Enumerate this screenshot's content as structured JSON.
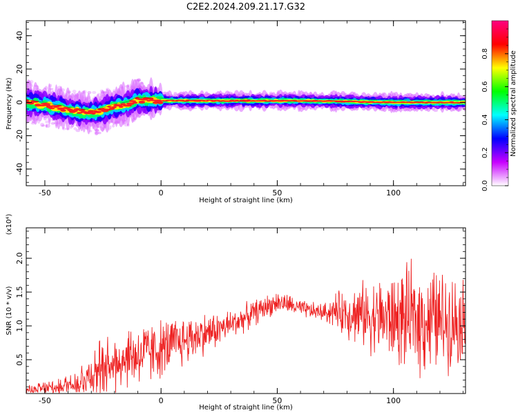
{
  "title": "C2E2.2024.209.21.17.G32",
  "chart_data": [
    {
      "type": "heatmap",
      "name": "spectrogram",
      "xlabel": "Height of straight line (km)",
      "ylabel": "Frequency (Hz)",
      "xlim": [
        -58,
        131
      ],
      "ylim": [
        -50,
        49
      ],
      "xticks": [
        -50,
        0,
        50,
        100
      ],
      "yticks": [
        -40,
        -20,
        0,
        20,
        40
      ],
      "ridge": [
        {
          "x": -58,
          "f": 0.0
        },
        {
          "x": -50,
          "f": -1.5
        },
        {
          "x": -45,
          "f": -3.0
        },
        {
          "x": -40,
          "f": -4.5
        },
        {
          "x": -35,
          "f": -5.5
        },
        {
          "x": -30,
          "f": -6.5
        },
        {
          "x": -25,
          "f": -5.0
        },
        {
          "x": -20,
          "f": -2.5
        },
        {
          "x": -15,
          "f": -1.5
        },
        {
          "x": -10,
          "f": 1.5
        },
        {
          "x": -5,
          "f": 1.0
        },
        {
          "x": 0,
          "f": 1.0
        },
        {
          "x": 20,
          "f": 1.0
        },
        {
          "x": 60,
          "f": 1.0
        },
        {
          "x": 80,
          "f": 0.5
        },
        {
          "x": 100,
          "f": 0.0
        },
        {
          "x": 131,
          "f": 0.0
        }
      ],
      "colorbar": {
        "label": "Normalized spectral amplitude",
        "ticks": [
          0.0,
          0.2,
          0.4,
          0.6,
          0.8
        ],
        "range": [
          0,
          1
        ],
        "colors": [
          "#ffffff",
          "#c800ff",
          "#0000ff",
          "#00ffff",
          "#00ff00",
          "#ffff00",
          "#ff0000",
          "#ff0080"
        ]
      }
    },
    {
      "type": "line",
      "name": "snr",
      "xlabel": "Height of straight line (km)",
      "ylabel": "SNR (10 * v/v)",
      "scale_label": "(x10⁴)",
      "xlim": [
        -58,
        131
      ],
      "ylim": [
        0,
        2.45
      ],
      "xticks": [
        -50,
        0,
        50,
        100
      ],
      "yticks": [
        0.5,
        1.0,
        1.5,
        2.0
      ],
      "color": "#ee2222",
      "trend": [
        {
          "x": -58,
          "y": 0.05
        },
        {
          "x": -45,
          "y": 0.08
        },
        {
          "x": -35,
          "y": 0.2
        },
        {
          "x": -25,
          "y": 0.4
        },
        {
          "x": -15,
          "y": 0.55
        },
        {
          "x": -5,
          "y": 0.6
        },
        {
          "x": 5,
          "y": 0.72
        },
        {
          "x": 15,
          "y": 0.85
        },
        {
          "x": 25,
          "y": 0.95
        },
        {
          "x": 35,
          "y": 1.1
        },
        {
          "x": 45,
          "y": 1.28
        },
        {
          "x": 50,
          "y": 1.35
        },
        {
          "x": 55,
          "y": 1.32
        },
        {
          "x": 60,
          "y": 1.25
        },
        {
          "x": 65,
          "y": 1.22
        },
        {
          "x": 70,
          "y": 1.2
        },
        {
          "x": 75,
          "y": 1.22
        },
        {
          "x": 80,
          "y": 1.2
        },
        {
          "x": 90,
          "y": 1.15
        },
        {
          "x": 100,
          "y": 1.1
        },
        {
          "x": 110,
          "y": 1.1
        },
        {
          "x": 120,
          "y": 1.08
        },
        {
          "x": 131,
          "y": 1.1
        }
      ],
      "spread": [
        {
          "x": -58,
          "a": 0.08
        },
        {
          "x": -40,
          "a": 0.15
        },
        {
          "x": -25,
          "a": 0.4
        },
        {
          "x": -10,
          "a": 0.45
        },
        {
          "x": 10,
          "a": 0.35
        },
        {
          "x": 30,
          "a": 0.2
        },
        {
          "x": 60,
          "a": 0.12
        },
        {
          "x": 70,
          "a": 0.12
        },
        {
          "x": 80,
          "a": 0.35
        },
        {
          "x": 95,
          "a": 0.55
        },
        {
          "x": 110,
          "a": 0.75
        },
        {
          "x": 120,
          "a": 0.7
        },
        {
          "x": 131,
          "a": 0.55
        }
      ]
    }
  ]
}
